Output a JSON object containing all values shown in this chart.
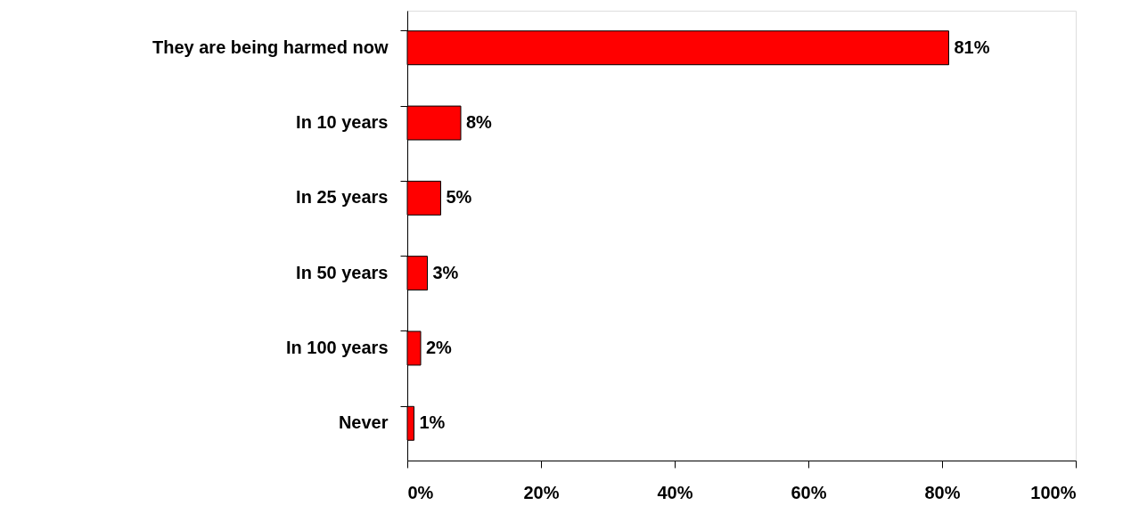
{
  "chart_data": {
    "type": "bar",
    "orientation": "horizontal",
    "categories": [
      "They are being harmed now",
      "In 10 years",
      "In 25 years",
      "In 50 years",
      "In 100 years",
      "Never"
    ],
    "values": [
      81,
      8,
      5,
      3,
      2,
      1
    ],
    "value_labels": [
      "81%",
      "8%",
      "5%",
      "3%",
      "2%",
      "1%"
    ],
    "color": "#ff0000",
    "xlim": [
      0,
      100
    ],
    "xticks": [
      {
        "value": 0,
        "label": "0%"
      },
      {
        "value": 20,
        "label": "20%"
      },
      {
        "value": 40,
        "label": "40%"
      },
      {
        "value": 60,
        "label": "60%"
      },
      {
        "value": 80,
        "label": "80%"
      },
      {
        "value": 100,
        "label": "100%"
      }
    ],
    "grid": false
  }
}
